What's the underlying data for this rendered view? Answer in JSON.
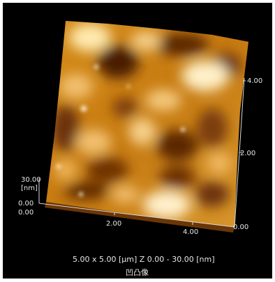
{
  "image_kind": "afm-3d-topography",
  "colors": {
    "background": "#000000",
    "axis": "#d9d9d9",
    "text": "#e8e8e8",
    "height_low": "#4a1a00",
    "height_mid": "#c8780c",
    "height_high": "#fff3d6"
  },
  "axes": {
    "z": {
      "top_label": "30.00",
      "unit_label": "[nm]",
      "zero_label": "0.00"
    },
    "x": {
      "ticks": [
        "0.00",
        "2.00",
        "4.00"
      ]
    },
    "y": {
      "ticks": [
        "0.00",
        "2.00",
        "4.00"
      ]
    }
  },
  "caption": {
    "scan_info": "5.00 x 5.00 [μm]   Z  0.00  -  30.00 [nm]",
    "view_mode": "凹凸像"
  }
}
